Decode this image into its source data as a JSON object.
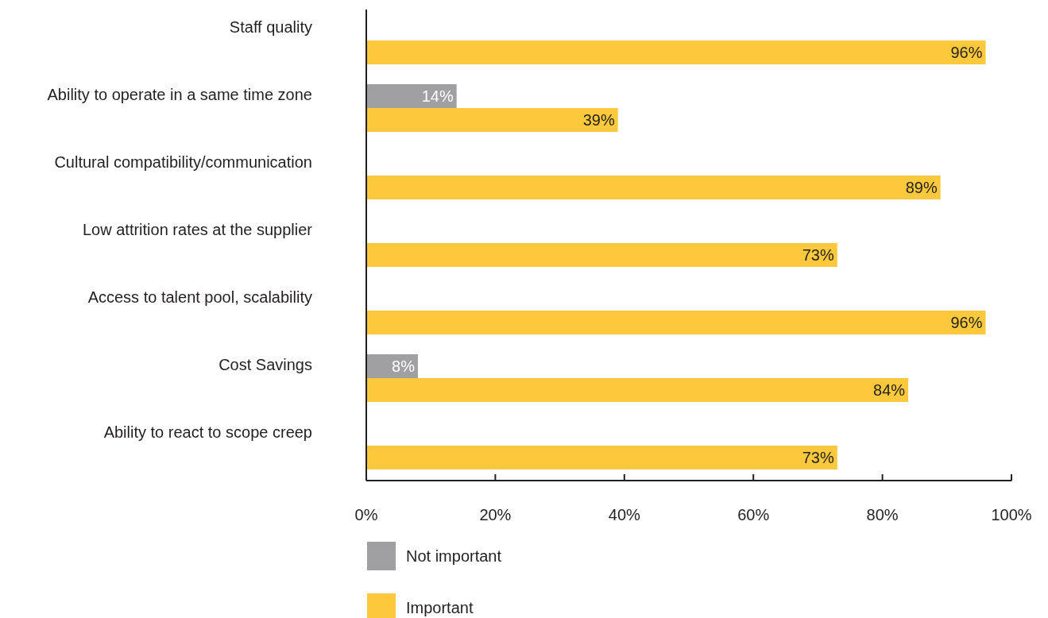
{
  "chart_data": {
    "type": "bar",
    "orientation": "horizontal",
    "categories": [
      "Staff quality",
      "Ability to operate in a same time zone",
      "Cultural compatibility/communication",
      "Low attrition rates at the supplier",
      "Access to talent pool, scalability",
      "Cost Savings",
      "Ability to react to scope creep"
    ],
    "series": [
      {
        "name": "Not important",
        "color": "#a0a0a3",
        "values": [
          null,
          14,
          null,
          null,
          null,
          8,
          null
        ],
        "value_labels": [
          null,
          "14%",
          null,
          null,
          null,
          "8%",
          null
        ]
      },
      {
        "name": "Important",
        "color": "#fdc93c",
        "values": [
          96,
          39,
          89,
          73,
          96,
          84,
          73
        ],
        "value_labels": [
          "96%",
          "39%",
          "89%",
          "73%",
          "96%",
          "84%",
          "73%"
        ]
      }
    ],
    "xlim": [
      0,
      100
    ],
    "xticks": [
      {
        "value": 0,
        "label": "0%"
      },
      {
        "value": 20,
        "label": "20%"
      },
      {
        "value": 40,
        "label": "40%"
      },
      {
        "value": 60,
        "label": "60%"
      },
      {
        "value": 80,
        "label": "80%"
      },
      {
        "value": 100,
        "label": "100%"
      }
    ],
    "legend": "bottom",
    "grid": false
  }
}
